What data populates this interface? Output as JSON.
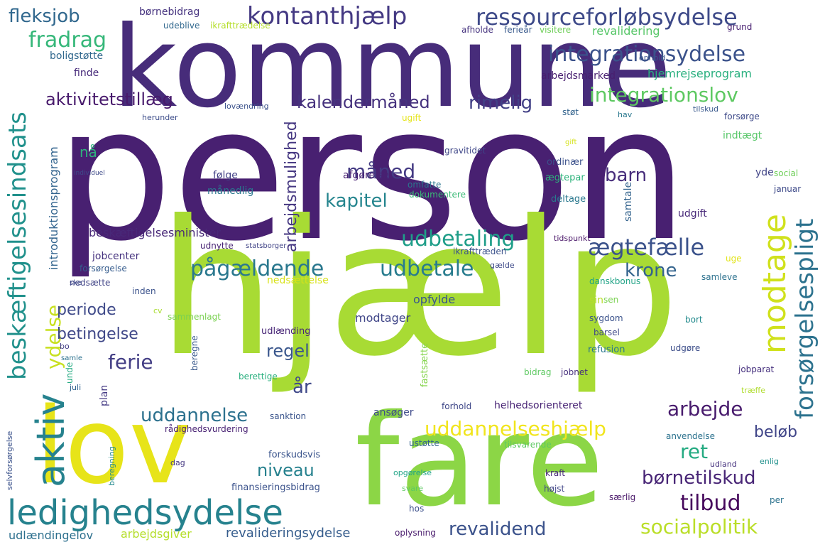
{
  "words": [
    {
      "text": "person",
      "color": "#482071"
    },
    {
      "text": "hjælp",
      "color": "#a8db34"
    },
    {
      "text": "kommune",
      "color": "#472c7a"
    },
    {
      "text": "fare",
      "color": "#8cd646"
    },
    {
      "text": "lov",
      "color": "#e7e419"
    },
    {
      "text": "ledighedsydelse",
      "color": "#26828e"
    },
    {
      "text": "ressourceforløbsydelse",
      "color": "#3e4a89"
    },
    {
      "text": "kontanthjælp",
      "color": "#443983"
    },
    {
      "text": "integrationsydelse",
      "color": "#3b528b"
    },
    {
      "text": "integrationslov",
      "color": "#5ec962"
    },
    {
      "text": "aktivitetstillæg",
      "color": "#481a6c"
    },
    {
      "text": "kalendermåned",
      "color": "#46327e"
    },
    {
      "text": "rimelig",
      "color": "#424086"
    },
    {
      "text": "fleksjob",
      "color": "#31688e"
    },
    {
      "text": "fradrag",
      "color": "#35b779"
    },
    {
      "text": "modtage",
      "color": "#d0e11c"
    },
    {
      "text": "forsørgelsespligt",
      "color": "#2c728e"
    },
    {
      "text": "beskæftigelsesindsats",
      "color": "#21918c"
    },
    {
      "text": "aktiv",
      "color": "#26828e"
    },
    {
      "text": "ydelse",
      "color": "#c8e020"
    },
    {
      "text": "udbetaling",
      "color": "#1f9e89"
    },
    {
      "text": "udbetale",
      "color": "#287c8e"
    },
    {
      "text": "pågældende",
      "color": "#2a788e"
    },
    {
      "text": "ægtefælle",
      "color": "#3b528b"
    },
    {
      "text": "krone",
      "color": "#33638d"
    },
    {
      "text": "måned",
      "color": "#443a83"
    },
    {
      "text": "kapitel",
      "color": "#25858e"
    },
    {
      "text": "barn",
      "color": "#472d7b"
    },
    {
      "text": "arbejdsmulighed",
      "color": "#453781"
    },
    {
      "text": "periode",
      "color": "#3e4989"
    },
    {
      "text": "betingelse",
      "color": "#3f4788"
    },
    {
      "text": "ferie",
      "color": "#433e85"
    },
    {
      "text": "regel",
      "color": "#39568c"
    },
    {
      "text": "uddannelse",
      "color": "#2c718e"
    },
    {
      "text": "uddannelseshjælp",
      "color": "#f1e51d"
    },
    {
      "text": "arbejde",
      "color": "#481b6d"
    },
    {
      "text": "ret",
      "color": "#25ab82"
    },
    {
      "text": "børnetilskud",
      "color": "#482576"
    },
    {
      "text": "tilbud",
      "color": "#46085c"
    },
    {
      "text": "revalidend",
      "color": "#3b528b"
    },
    {
      "text": "socialpolitik",
      "color": "#bade28"
    },
    {
      "text": "niveau",
      "color": "#26818e"
    },
    {
      "text": "år",
      "color": "#3f4889"
    },
    {
      "text": "beløb",
      "color": "#404588"
    },
    {
      "text": "revalideringsydelse",
      "color": "#365d8d"
    },
    {
      "text": "arbejdsgiver",
      "color": "#b5de2b"
    },
    {
      "text": "udlændingelov",
      "color": "#2d708e"
    },
    {
      "text": "beskæftigelsesminister",
      "color": "#482878"
    },
    {
      "text": "introduktionsprogram",
      "color": "#32648e"
    },
    {
      "text": "hjemrejseprogram",
      "color": "#2ab07f"
    },
    {
      "text": "arbejdsmarked",
      "color": "#481f70"
    },
    {
      "text": "revalidering",
      "color": "#56c667"
    },
    {
      "text": "børnebidrag",
      "color": "#46337f"
    },
    {
      "text": "boligstøtte",
      "color": "#31688e"
    },
    {
      "text": "finde",
      "color": "#472a7a"
    },
    {
      "text": "nå",
      "color": "#2eb37c"
    },
    {
      "text": "følge",
      "color": "#424186"
    },
    {
      "text": "månedlig",
      "color": "#2a768e"
    },
    {
      "text": "afgørelse",
      "color": "#482173"
    },
    {
      "text": "omfatte",
      "color": "#2a768e"
    },
    {
      "text": "dokumentere",
      "color": "#3aba76"
    },
    {
      "text": "ordinær",
      "color": "#3b518b"
    },
    {
      "text": "ægtepar",
      "color": "#2eb37c"
    },
    {
      "text": "deltage",
      "color": "#2a788e"
    },
    {
      "text": "samtale",
      "color": "#33638d"
    },
    {
      "text": "udgift",
      "color": "#482979"
    },
    {
      "text": "indtægt",
      "color": "#56c667"
    },
    {
      "text": "yde",
      "color": "#414487"
    },
    {
      "text": "social",
      "color": "#6ece58"
    },
    {
      "text": "januar",
      "color": "#3e4a89"
    },
    {
      "text": "jobcenter",
      "color": "#46337f"
    },
    {
      "text": "udnytte",
      "color": "#482374"
    },
    {
      "text": "forsørgelse",
      "color": "#365c8d"
    },
    {
      "text": "nedsætte",
      "color": "#414487"
    },
    {
      "text": "inden",
      "color": "#3b528b"
    },
    {
      "text": "nedsættelse",
      "color": "#d8e219"
    },
    {
      "text": "opfylde",
      "color": "#39568c"
    },
    {
      "text": "samleve",
      "color": "#2c718e"
    },
    {
      "text": "danskbonus",
      "color": "#20a386"
    },
    {
      "text": "modtager",
      "color": "#404688"
    },
    {
      "text": "sin",
      "color": "#b8de29"
    },
    {
      "text": "sen",
      "color": "#7ad151"
    },
    {
      "text": "sygdom",
      "color": "#3b528b"
    },
    {
      "text": "barsel",
      "color": "#3f4889"
    },
    {
      "text": "refusion",
      "color": "#2a778e"
    },
    {
      "text": "udgøre",
      "color": "#3d4e8a"
    },
    {
      "text": "bort",
      "color": "#238a8d"
    },
    {
      "text": "udlænding",
      "color": "#482677"
    },
    {
      "text": "beregne",
      "color": "#38588c"
    },
    {
      "text": "sammenlagt",
      "color": "#7ad151"
    },
    {
      "text": "fastsætte",
      "color": "#84d44b"
    },
    {
      "text": "berettige",
      "color": "#2ab07f"
    },
    {
      "text": "sanktion",
      "color": "#3a548c"
    },
    {
      "text": "ansøger",
      "color": "#3e4a89"
    },
    {
      "text": "helhedsorienteret",
      "color": "#482475"
    },
    {
      "text": "forhold",
      "color": "#3f4788"
    },
    {
      "text": "jobparat",
      "color": "#46307e"
    },
    {
      "text": "træffe",
      "color": "#b0dd2f"
    },
    {
      "text": "bidrag",
      "color": "#5ec962"
    },
    {
      "text": "jobnet",
      "color": "#472f7d"
    },
    {
      "text": "anvendelse",
      "color": "#2c728e"
    },
    {
      "text": "ustøtte",
      "color": "#33638d"
    },
    {
      "text": "tilsvarende",
      "color": "#5ec962"
    },
    {
      "text": "forskudsvis",
      "color": "#3a548c"
    },
    {
      "text": "rådighedsvurdering",
      "color": "#482173"
    },
    {
      "text": "plan",
      "color": "#443983"
    },
    {
      "text": "unde",
      "color": "#25ab82"
    },
    {
      "text": "juli",
      "color": "#32648e"
    },
    {
      "text": "finansieringsbidrag",
      "color": "#3b528b"
    },
    {
      "text": "svare",
      "color": "#5ec962"
    },
    {
      "text": "opgørelse",
      "color": "#20a486"
    },
    {
      "text": "kraft",
      "color": "#482979"
    },
    {
      "text": "højst",
      "color": "#404588"
    },
    {
      "text": "særlig",
      "color": "#481668"
    },
    {
      "text": "per",
      "color": "#2c728e"
    },
    {
      "text": "hos",
      "color": "#3c4f8a"
    },
    {
      "text": "oplysning",
      "color": "#481a6c"
    },
    {
      "text": "dag",
      "color": "#453882"
    },
    {
      "text": "udland",
      "color": "#46327e"
    },
    {
      "text": "enlig",
      "color": "#21918c"
    },
    {
      "text": "beregning",
      "color": "#238a8d"
    },
    {
      "text": "selvforsørgelse",
      "color": "#3b528b"
    },
    {
      "text": "gravitidet",
      "color": "#3f4788"
    },
    {
      "text": "ugift",
      "color": "#e5e419"
    },
    {
      "text": "støt",
      "color": "#33638d"
    },
    {
      "text": "hav",
      "color": "#2a788e"
    },
    {
      "text": "tilskud",
      "color": "#38588c"
    },
    {
      "text": "forsørge",
      "color": "#3e4a89"
    },
    {
      "text": "herunder",
      "color": "#3d4d8a"
    },
    {
      "text": "lovændring",
      "color": "#3b528b"
    },
    {
      "text": "visitere",
      "color": "#6ece58"
    },
    {
      "text": "ferieår",
      "color": "#38598c"
    },
    {
      "text": "afholde",
      "color": "#46337f"
    },
    {
      "text": "grund",
      "color": "#482071"
    },
    {
      "text": "ophold",
      "color": "#3a548c"
    },
    {
      "text": "udeblive",
      "color": "#31688e"
    },
    {
      "text": "ikrafttrædelse",
      "color": "#b5de2b"
    },
    {
      "text": "ikrafttræden",
      "color": "#3b528b"
    },
    {
      "text": "tidspunkt",
      "color": "#481467"
    },
    {
      "text": "uge",
      "color": "#e2e418"
    },
    {
      "text": "gælde",
      "color": "#3e4a89"
    },
    {
      "text": "cv",
      "color": "#aadc32"
    },
    {
      "text": "bo",
      "color": "#433e85"
    },
    {
      "text": "samle",
      "color": "#2c718e"
    },
    {
      "text": "ske",
      "color": "#3e4989"
    },
    {
      "text": "gift",
      "color": "#d5e21a"
    },
    {
      "text": "statsborger",
      "color": "#414487"
    },
    {
      "text": "individuel",
      "color": "#3e4a89"
    }
  ]
}
